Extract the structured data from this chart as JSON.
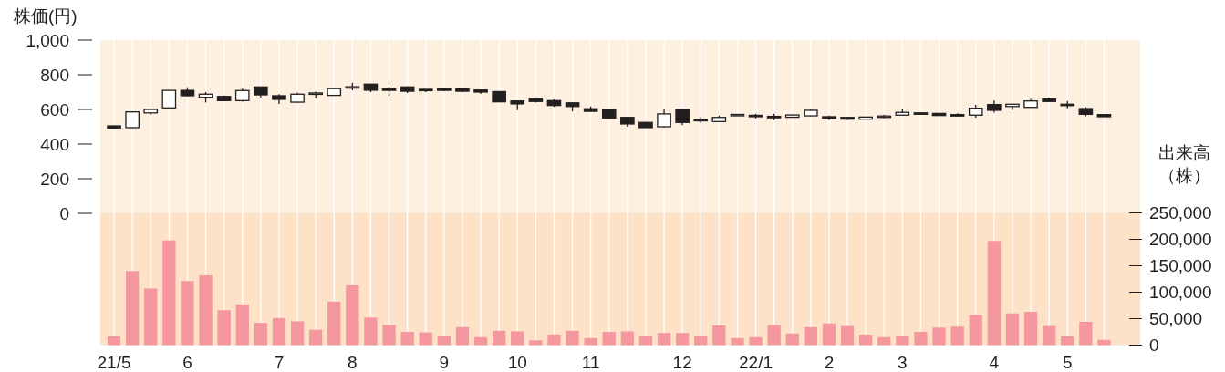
{
  "chart_data": [
    {
      "type": "candlestick",
      "ylabel": "株価(円)",
      "categories": [
        null,
        null,
        null,
        null,
        null,
        null,
        null,
        null,
        null,
        null,
        null,
        null,
        null,
        null,
        null,
        null,
        null,
        null,
        null,
        null,
        null,
        null,
        null,
        null,
        null,
        null,
        null,
        null,
        null,
        null,
        null,
        null,
        null,
        null,
        null,
        null,
        null,
        null,
        null,
        null,
        null,
        null,
        null,
        null,
        null,
        null,
        null,
        null,
        null,
        null,
        null,
        null,
        null,
        null,
        null
      ],
      "ohlc": [
        [
          505,
          508,
          488,
          492
        ],
        [
          495,
          590,
          493,
          586
        ],
        [
          580,
          603,
          570,
          600
        ],
        [
          609,
          712,
          609,
          710
        ],
        [
          710,
          728,
          677,
          679
        ],
        [
          670,
          700,
          640,
          688
        ],
        [
          675,
          680,
          648,
          651
        ],
        [
          651,
          720,
          645,
          709
        ],
        [
          730,
          732,
          670,
          684
        ],
        [
          679,
          688,
          632,
          658
        ],
        [
          642,
          698,
          640,
          688
        ],
        [
          690,
          703,
          663,
          695
        ],
        [
          681,
          724,
          679,
          720
        ],
        [
          728,
          754,
          710,
          731
        ],
        [
          746,
          748,
          700,
          711
        ],
        [
          718,
          732,
          680,
          714
        ],
        [
          730,
          733,
          695,
          705
        ],
        [
          716,
          716,
          700,
          712
        ],
        [
          718,
          720,
          705,
          712
        ],
        [
          718,
          720,
          700,
          705
        ],
        [
          712,
          714,
          690,
          700
        ],
        [
          703,
          705,
          642,
          644
        ],
        [
          649,
          650,
          596,
          632
        ],
        [
          665,
          670,
          640,
          646
        ],
        [
          651,
          658,
          615,
          623
        ],
        [
          638,
          640,
          589,
          617
        ],
        [
          604,
          617,
          587,
          589
        ],
        [
          598,
          600,
          547,
          551
        ],
        [
          554,
          556,
          500,
          516
        ],
        [
          525,
          527,
          495,
          495
        ],
        [
          500,
          600,
          498,
          574
        ],
        [
          600,
          602,
          509,
          525
        ],
        [
          542,
          556,
          521,
          540
        ],
        [
          530,
          565,
          530,
          554
        ],
        [
          568,
          572,
          566,
          571
        ],
        [
          566,
          575,
          548,
          564
        ],
        [
          560,
          575,
          538,
          558
        ],
        [
          555,
          570,
          553,
          568
        ],
        [
          563,
          600,
          560,
          595
        ],
        [
          558,
          565,
          540,
          555
        ],
        [
          554,
          556,
          540,
          544
        ],
        [
          544,
          558,
          542,
          556
        ],
        [
          559,
          570,
          549,
          562
        ],
        [
          567,
          600,
          565,
          583
        ],
        [
          580,
          582,
          572,
          574
        ],
        [
          577,
          578,
          563,
          565
        ],
        [
          570,
          578,
          560,
          568
        ],
        [
          567,
          626,
          553,
          607
        ],
        [
          628,
          651,
          581,
          595
        ],
        [
          617,
          632,
          598,
          630
        ],
        [
          612,
          660,
          610,
          649
        ],
        [
          660,
          669,
          644,
          646
        ],
        [
          630,
          649,
          607,
          626
        ],
        [
          605,
          614,
          560,
          572
        ],
        [
          570,
          570,
          558,
          558
        ]
      ],
      "ylim": [
        0,
        1000
      ],
      "yticks": [
        0,
        200,
        400,
        600,
        800,
        {
          "value": 1000,
          "label": "1,000"
        }
      ],
      "grid": "x",
      "tick_labels": "y"
    },
    {
      "type": "bar",
      "y2label": "出来高（株）",
      "categories": [
        "21/5",
        null,
        null,
        null,
        "6",
        null,
        null,
        null,
        null,
        "7",
        null,
        null,
        null,
        "8",
        null,
        null,
        null,
        null,
        "9",
        null,
        null,
        null,
        "10",
        null,
        null,
        null,
        "11",
        null,
        null,
        null,
        null,
        "12",
        null,
        null,
        null,
        "22/1",
        null,
        null,
        null,
        "2",
        null,
        null,
        null,
        "3",
        null,
        null,
        null,
        null,
        "4",
        null,
        null,
        null,
        "5",
        null,
        null
      ],
      "series": [
        {
          "color": "#f4979f",
          "axis": "y2",
          "values": [
            17000,
            140000,
            107000,
            198000,
            121000,
            132000,
            66000,
            77000,
            42000,
            51000,
            45000,
            29000,
            82000,
            113000,
            52000,
            38000,
            25000,
            24000,
            18000,
            34000,
            15000,
            27000,
            26000,
            9000,
            20000,
            27000,
            13000,
            25000,
            26000,
            18000,
            23000,
            23000,
            18000,
            37000,
            13000,
            15000,
            38000,
            22000,
            34000,
            41000,
            36000,
            20000,
            15000,
            18000,
            25000,
            33000,
            35000,
            57000,
            197000,
            60000,
            63000,
            36000,
            17000,
            44000,
            10000
          ]
        }
      ],
      "y2lim": [
        0,
        250000
      ],
      "y2ticks": [
        0,
        {
          "value": 50000,
          "label": "50,000"
        },
        {
          "value": 100000,
          "label": "100,000"
        },
        {
          "value": 150000,
          "label": "150,000"
        },
        {
          "value": 200000,
          "label": "200,000"
        },
        {
          "value": 250000,
          "label": "250,000"
        }
      ],
      "grid": "x"
    }
  ]
}
